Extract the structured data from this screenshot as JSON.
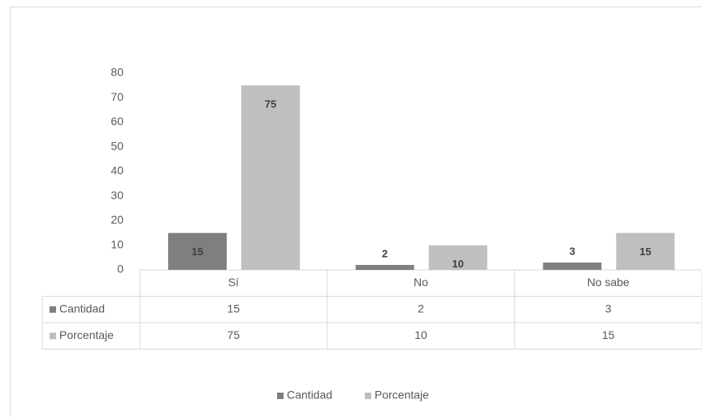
{
  "chart_data": {
    "type": "bar",
    "categories": [
      "Sí",
      "No",
      "No sabe"
    ],
    "series": [
      {
        "name": "Cantidad",
        "color": "#7f7f7f",
        "values": [
          15,
          2,
          3
        ]
      },
      {
        "name": "Porcentaje",
        "color": "#bfbfbf",
        "values": [
          75,
          10,
          15
        ]
      }
    ],
    "ylim": [
      0,
      80
    ],
    "yticks": [
      0,
      10,
      20,
      30,
      40,
      50,
      60,
      70,
      80
    ],
    "grid": false,
    "legend": "bottom"
  }
}
